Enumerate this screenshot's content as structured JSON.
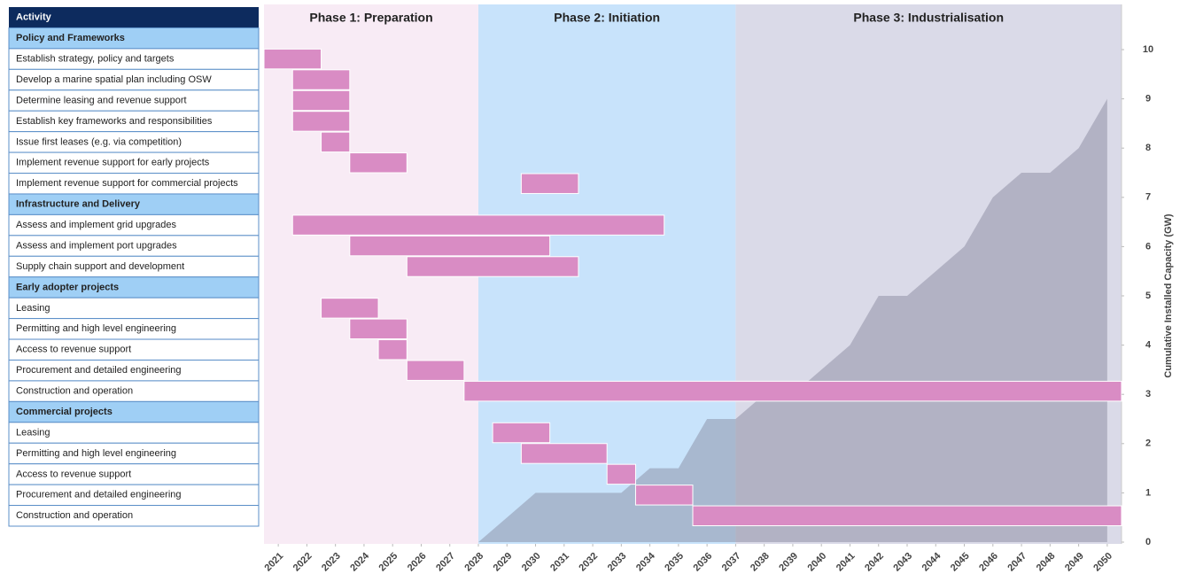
{
  "chart_data": {
    "type": "gantt",
    "header": "Activity",
    "header_color": "#0d2b5e",
    "section_color": "#9fcff5",
    "bar_color": "#d98cc4",
    "phases": [
      {
        "label": "Phase 1: Preparation",
        "start": 2021,
        "end": 2028,
        "color": "#f8ebf5"
      },
      {
        "label": "Phase 2: Initiation",
        "start": 2028,
        "end": 2037,
        "color": "#c8e3fb"
      },
      {
        "label": "Phase 3: Industrialisation",
        "start": 2037,
        "end": 2050,
        "color": "#dadae8"
      }
    ],
    "rows": [
      {
        "label": "Policy and Frameworks",
        "section": true
      },
      {
        "label": "Establish  strategy, policy and targets",
        "start": 2021,
        "end": 2022
      },
      {
        "label": "Develop a marine spatial plan including OSW",
        "start": 2022,
        "end": 2023
      },
      {
        "label": "Determine leasing and revenue support",
        "start": 2022,
        "end": 2023
      },
      {
        "label": "Establish key frameworks and responsibilities",
        "start": 2022,
        "end": 2023
      },
      {
        "label": "Issue first leases (e.g. via competition)",
        "start": 2023,
        "end": 2023
      },
      {
        "label": "Implement revenue support for early projects",
        "start": 2024,
        "end": 2025
      },
      {
        "label": "Implement revenue support for commercial projects",
        "start": 2030,
        "end": 2031
      },
      {
        "label": "Infrastructure and Delivery",
        "section": true
      },
      {
        "label": "Assess and implement grid upgrades",
        "start": 2022,
        "end": 2034
      },
      {
        "label": "Assess and implement port upgrades",
        "start": 2024,
        "end": 2030
      },
      {
        "label": "Supply chain support and development",
        "start": 2026,
        "end": 2031
      },
      {
        "label": "Early adopter projects",
        "section": true
      },
      {
        "label": "Leasing",
        "start": 2023,
        "end": 2024
      },
      {
        "label": "Permitting and high level engineering",
        "start": 2024,
        "end": 2025
      },
      {
        "label": "Access to revenue support",
        "start": 2025,
        "end": 2025
      },
      {
        "label": "Procurement and detailed engineering",
        "start": 2026,
        "end": 2027
      },
      {
        "label": "Construction and operation",
        "start": 2028,
        "end": 2050
      },
      {
        "label": "Commercial  projects",
        "section": true
      },
      {
        "label": "Leasing",
        "start": 2029,
        "end": 2030
      },
      {
        "label": "Permitting and high level engineering",
        "start": 2030,
        "end": 2032
      },
      {
        "label": "Access to revenue support",
        "start": 2033,
        "end": 2033
      },
      {
        "label": "Procurement and detailed engineering",
        "start": 2034,
        "end": 2035
      },
      {
        "label": "Construction and operation",
        "start": 2036,
        "end": 2050
      }
    ],
    "xticks": [
      2021,
      2022,
      2023,
      2024,
      2025,
      2026,
      2027,
      2028,
      2029,
      2030,
      2031,
      2032,
      2033,
      2034,
      2035,
      2036,
      2037,
      2038,
      2039,
      2040,
      2041,
      2042,
      2043,
      2044,
      2045,
      2046,
      2047,
      2048,
      2049,
      2050
    ],
    "area": {
      "color": "#7d7d92",
      "x": [
        2028,
        2029,
        2030,
        2031,
        2032,
        2033,
        2034,
        2035,
        2036,
        2037,
        2038,
        2039,
        2040,
        2041,
        2042,
        2043,
        2044,
        2045,
        2046,
        2047,
        2048,
        2049,
        2050
      ],
      "values": [
        0,
        0.5,
        1,
        1,
        1,
        1,
        1.5,
        1.5,
        2.5,
        2.5,
        3,
        3,
        3.5,
        4,
        5,
        5,
        5.5,
        6,
        7,
        7.5,
        7.5,
        8,
        9
      ]
    },
    "ylabel": "Cumulative Installed Capacity (GW)",
    "ylim": [
      0,
      10
    ],
    "yticks": [
      0,
      1,
      2,
      3,
      4,
      5,
      6,
      7,
      8,
      9,
      10
    ]
  }
}
